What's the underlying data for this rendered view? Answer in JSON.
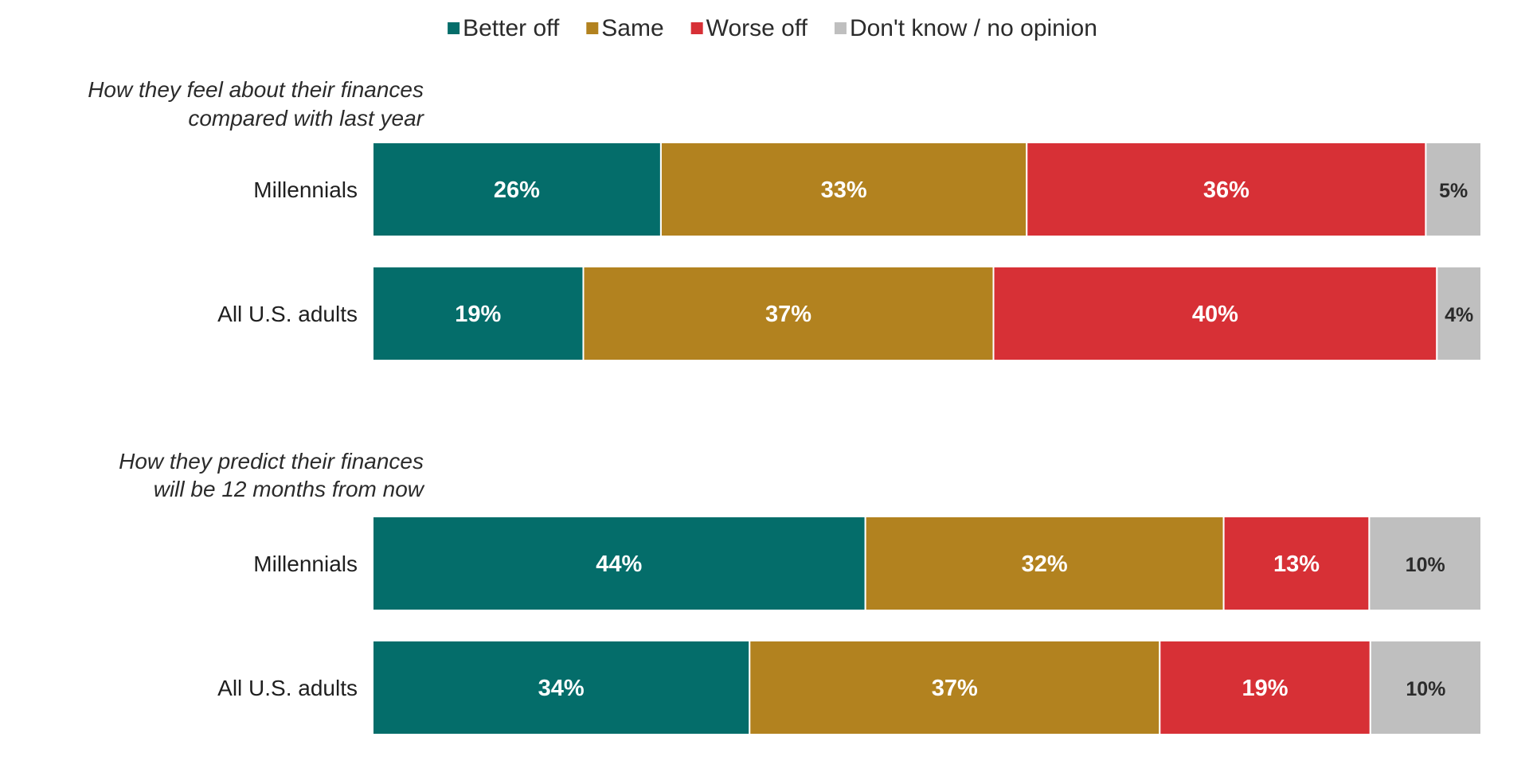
{
  "chart_data": {
    "type": "bar",
    "orientation": "horizontal",
    "stacked": true,
    "legend_position": "top",
    "grid": false,
    "series": [
      {
        "name": "Better off",
        "color": "#046d6a"
      },
      {
        "name": "Same",
        "color": "#b2821f"
      },
      {
        "name": "Worse off",
        "color": "#d73036"
      },
      {
        "name": "Don't know / no opinion",
        "color": "#bfbfbf"
      }
    ],
    "panels": [
      {
        "title_lines": [
          "How they feel about their finances",
          "compared with last year"
        ],
        "rows": [
          {
            "label": "Millennials",
            "values": [
              26,
              33,
              36,
              5
            ],
            "value_labels": [
              "26%",
              "33%",
              "36%",
              "5%"
            ]
          },
          {
            "label": "All U.S. adults",
            "values": [
              19,
              37,
              40,
              4
            ],
            "value_labels": [
              "19%",
              "37%",
              "40%",
              "4%"
            ]
          }
        ]
      },
      {
        "title_lines": [
          "How they predict their finances",
          "will be 12 months from now"
        ],
        "rows": [
          {
            "label": "Millennials",
            "values": [
              44,
              32,
              13,
              10
            ],
            "value_labels": [
              "44%",
              "32%",
              "13%",
              "10%"
            ]
          },
          {
            "label": "All U.S. adults",
            "values": [
              34,
              37,
              19,
              10
            ],
            "value_labels": [
              "34%",
              "37%",
              "19%",
              "10%"
            ]
          }
        ]
      }
    ],
    "value_label_colors": {
      "dark_fill": "#ffffff",
      "light_fill": "#2b2b2b"
    }
  }
}
